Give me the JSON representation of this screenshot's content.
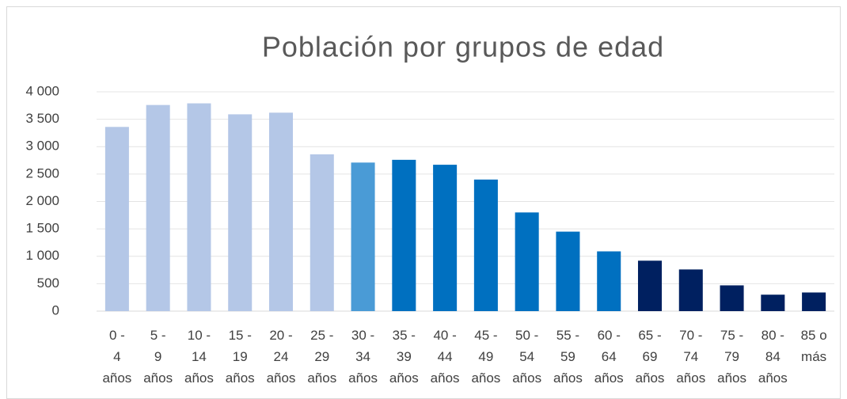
{
  "chart_data": {
    "type": "bar",
    "title": "Población por grupos de edad",
    "categories": [
      "0 - 4 años",
      "5 - 9 años",
      "10 - 14 años",
      "15 - 19 años",
      "20 - 24 años",
      "25 - 29 años",
      "30 - 34 años",
      "35 - 39 años",
      "40 - 44 años",
      "45 - 49 años",
      "50 - 54 años",
      "55 - 59 años",
      "60 - 64 años",
      "65 - 69 años",
      "70 - 74 años",
      "75 - 79 años",
      "80 - 84 años",
      "85 o más"
    ],
    "values": [
      3360,
      3760,
      3790,
      3590,
      3620,
      2860,
      2710,
      2760,
      2670,
      2400,
      1800,
      1450,
      1090,
      920,
      760,
      470,
      300,
      340
    ],
    "colors": [
      "#b4c7e7",
      "#b4c7e7",
      "#b4c7e7",
      "#b4c7e7",
      "#b4c7e7",
      "#b4c7e7",
      "#4a9bd6",
      "#0070c0",
      "#0070c0",
      "#0070c0",
      "#0070c0",
      "#0070c0",
      "#0070c0",
      "#002060",
      "#002060",
      "#002060",
      "#002060",
      "#002060"
    ],
    "ylim": [
      0,
      4000
    ],
    "yticks": [
      0,
      500,
      {
        "value": 1000,
        "label": "1 000"
      },
      {
        "value": 1500,
        "label": "1 500"
      },
      {
        "value": 2000,
        "label": "2 000"
      },
      {
        "value": 2500,
        "label": "2 500"
      },
      {
        "value": 3000,
        "label": "3 000"
      },
      {
        "value": 3500,
        "label": "3 500"
      },
      {
        "value": 4000,
        "label": "4 000"
      }
    ],
    "grid": true
  }
}
